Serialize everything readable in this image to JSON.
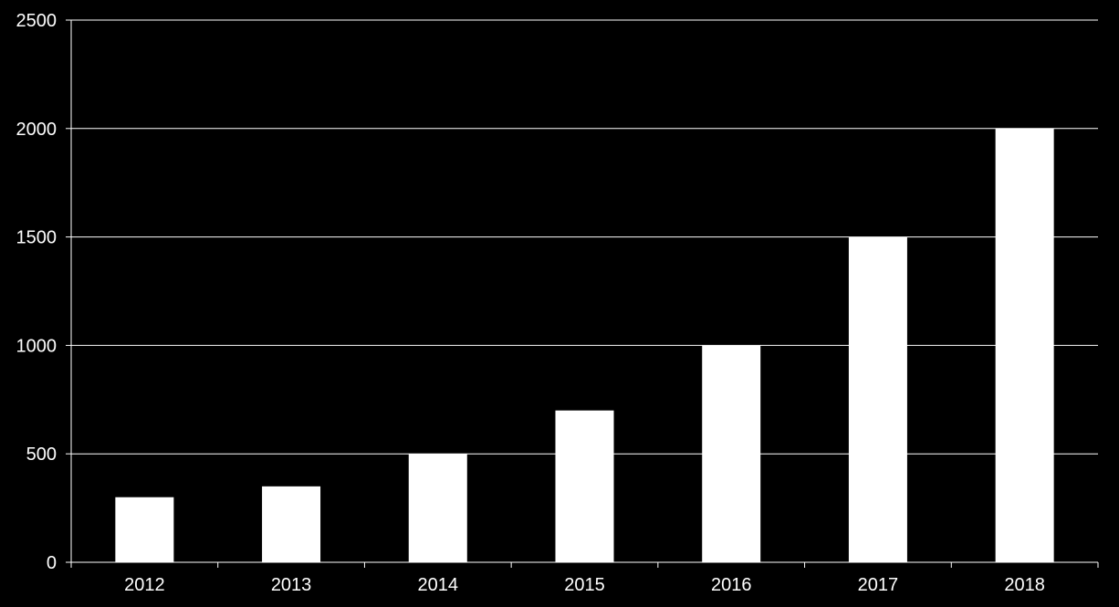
{
  "chart_data": {
    "type": "bar",
    "title": "",
    "xlabel": "",
    "ylabel": "",
    "categories": [
      "2012",
      "2013",
      "2014",
      "2015",
      "2016",
      "2017",
      "2018"
    ],
    "values": [
      300,
      350,
      500,
      700,
      1000,
      1500,
      2000
    ],
    "ylim": [
      0,
      2500
    ],
    "yticks": [
      0,
      500,
      1000,
      1500,
      2000,
      2500
    ],
    "grid": true,
    "legend": "none",
    "colors": {
      "background": "#000000",
      "bar": "#ffffff",
      "gridline": "#ffffff",
      "axis": "#ffffff",
      "text": "#ffffff"
    }
  }
}
